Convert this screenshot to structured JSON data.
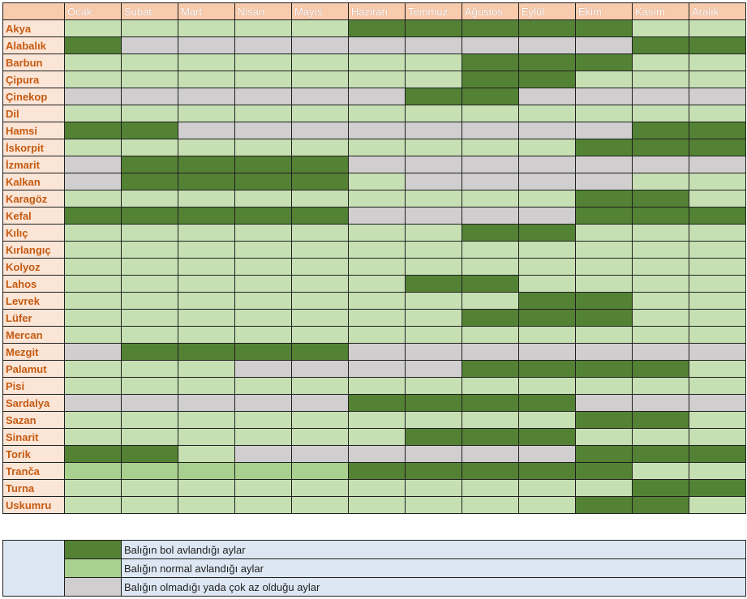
{
  "colors": {
    "bol": "#548235",
    "normal": "#c6e0b4",
    "normal_alt": "#a9d08e",
    "yok": "#d0cece",
    "header_bg": "#f8cbad",
    "fish_bg": "#fbe5d6",
    "fish_text": "#c55a11",
    "legend_bg": "#dde7f3"
  },
  "months": [
    "Ocak",
    "Şubat",
    "Mart",
    "Nisan",
    "Mayıs",
    "Haziran",
    "Temmuz",
    "Ağustos",
    "Eylül",
    "Ekim",
    "Kasım",
    "Aralık"
  ],
  "fish": [
    {
      "name": "Akya",
      "months": [
        "N",
        "N",
        "N",
        "N",
        "N",
        "B",
        "B",
        "B",
        "B",
        "B",
        "N",
        "N"
      ]
    },
    {
      "name": "Alabalık",
      "months": [
        "B",
        "Y",
        "Y",
        "Y",
        "Y",
        "Y",
        "Y",
        "Y",
        "Y",
        "Y",
        "B",
        "B"
      ]
    },
    {
      "name": "Barbun",
      "months": [
        "N",
        "N",
        "N",
        "N",
        "N",
        "N",
        "N",
        "B",
        "B",
        "B",
        "N",
        "N"
      ]
    },
    {
      "name": "Çipura",
      "months": [
        "N",
        "N",
        "N",
        "N",
        "N",
        "N",
        "N",
        "B",
        "B",
        "N",
        "N",
        "N"
      ]
    },
    {
      "name": "Çinekop",
      "months": [
        "Y",
        "Y",
        "Y",
        "Y",
        "Y",
        "Y",
        "B",
        "B",
        "Y",
        "Y",
        "Y",
        "Y"
      ]
    },
    {
      "name": "Dil",
      "months": [
        "N",
        "N",
        "N",
        "N",
        "N",
        "N",
        "N",
        "N",
        "N",
        "N",
        "N",
        "N"
      ]
    },
    {
      "name": "Hamsi",
      "months": [
        "B",
        "B",
        "Y",
        "Y",
        "Y",
        "Y",
        "Y",
        "Y",
        "Y",
        "Y",
        "B",
        "B"
      ]
    },
    {
      "name": "İskorpit",
      "months": [
        "N",
        "N",
        "N",
        "N",
        "N",
        "N",
        "N",
        "N",
        "N",
        "B",
        "B",
        "B"
      ]
    },
    {
      "name": "İzmarit",
      "months": [
        "Y",
        "B",
        "B",
        "B",
        "B",
        "Y",
        "Y",
        "Y",
        "Y",
        "Y",
        "Y",
        "Y"
      ]
    },
    {
      "name": "Kalkan",
      "months": [
        "Y",
        "B",
        "B",
        "B",
        "B",
        "N",
        "Y",
        "Y",
        "Y",
        "Y",
        "N",
        "N"
      ]
    },
    {
      "name": "Karagöz",
      "months": [
        "N",
        "N",
        "N",
        "N",
        "N",
        "N",
        "N",
        "N",
        "N",
        "B",
        "B",
        "N"
      ]
    },
    {
      "name": "Kefal",
      "months": [
        "B",
        "B",
        "B",
        "B",
        "B",
        "Y",
        "Y",
        "Y",
        "Y",
        "B",
        "B",
        "B"
      ]
    },
    {
      "name": "Kılıç",
      "months": [
        "N",
        "N",
        "N",
        "N",
        "N",
        "N",
        "N",
        "B",
        "B",
        "N",
        "N",
        "N"
      ]
    },
    {
      "name": "Kırlangıç",
      "months": [
        "N",
        "N",
        "N",
        "N",
        "N",
        "N",
        "N",
        "N",
        "N",
        "N",
        "N",
        "N"
      ]
    },
    {
      "name": "Kolyoz",
      "months": [
        "N",
        "N",
        "N",
        "N",
        "N",
        "N",
        "N",
        "N",
        "N",
        "N",
        "N",
        "N"
      ]
    },
    {
      "name": "Lahos",
      "months": [
        "N",
        "N",
        "N",
        "N",
        "N",
        "N",
        "B",
        "B",
        "N",
        "N",
        "N",
        "N"
      ]
    },
    {
      "name": "Levrek",
      "months": [
        "N",
        "N",
        "N",
        "N",
        "N",
        "N",
        "N",
        "N",
        "B",
        "B",
        "N",
        "N"
      ]
    },
    {
      "name": "Lüfer",
      "months": [
        "N",
        "N",
        "N",
        "N",
        "N",
        "N",
        "N",
        "B",
        "B",
        "B",
        "N",
        "N"
      ]
    },
    {
      "name": "Mercan",
      "months": [
        "N",
        "N",
        "N",
        "N",
        "N",
        "N",
        "N",
        "N",
        "N",
        "N",
        "N",
        "N"
      ]
    },
    {
      "name": "Mezgit",
      "months": [
        "Y",
        "B",
        "B",
        "B",
        "B",
        "Y",
        "Y",
        "Y",
        "Y",
        "Y",
        "Y",
        "Y"
      ]
    },
    {
      "name": "Palamut",
      "months": [
        "N",
        "N",
        "N",
        "Y",
        "Y",
        "Y",
        "Y",
        "B",
        "B",
        "B",
        "B",
        "N"
      ]
    },
    {
      "name": "Pisi",
      "months": [
        "N",
        "N",
        "N",
        "N",
        "N",
        "N",
        "N",
        "N",
        "N",
        "N",
        "N",
        "N"
      ]
    },
    {
      "name": "Sardalya",
      "months": [
        "Y",
        "Y",
        "Y",
        "Y",
        "Y",
        "B",
        "B",
        "B",
        "B",
        "Y",
        "Y",
        "Y"
      ]
    },
    {
      "name": "Sazan",
      "months": [
        "N",
        "N",
        "N",
        "N",
        "N",
        "N",
        "N",
        "N",
        "N",
        "B",
        "B",
        "N"
      ]
    },
    {
      "name": "Sinarit",
      "months": [
        "N",
        "N",
        "N",
        "N",
        "N",
        "N",
        "B",
        "B",
        "B",
        "N",
        "N",
        "N"
      ]
    },
    {
      "name": "Torik",
      "months": [
        "B",
        "B",
        "N",
        "Y",
        "Y",
        "Y",
        "Y",
        "Y",
        "Y",
        "B",
        "B",
        "B"
      ]
    },
    {
      "name": "Tranča",
      "months": [
        "L",
        "L",
        "L",
        "L",
        "L",
        "B",
        "B",
        "B",
        "B",
        "B",
        "N",
        "N"
      ]
    },
    {
      "name": "Turna",
      "months": [
        "N",
        "N",
        "N",
        "N",
        "N",
        "N",
        "N",
        "N",
        "N",
        "N",
        "B",
        "B"
      ]
    },
    {
      "name": "Uskumru",
      "months": [
        "N",
        "N",
        "N",
        "N",
        "N",
        "N",
        "N",
        "N",
        "N",
        "B",
        "B",
        "N"
      ]
    }
  ],
  "legend": [
    {
      "key": "B",
      "label": "Balığın bol avlandığı aylar"
    },
    {
      "key": "L",
      "label": "Balığın normal avlandığı aylar"
    },
    {
      "key": "Y",
      "label": "Balığın olmadığı yada çok az olduğu aylar"
    }
  ]
}
